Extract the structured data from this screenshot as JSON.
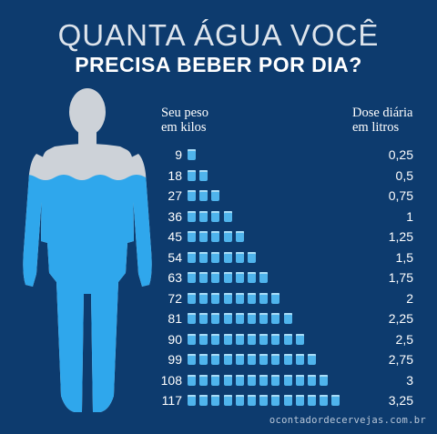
{
  "title": {
    "line1": "QUANTA ÁGUA VOCÊ",
    "line2": "PRECISA BEBER POR DIA?"
  },
  "table": {
    "weight_header": [
      "Seu peso",
      "em kilos"
    ],
    "dose_header": [
      "Dose diária",
      "em litros"
    ],
    "rows": [
      {
        "weight": "9",
        "glasses": 1,
        "liters": "0,25"
      },
      {
        "weight": "18",
        "glasses": 2,
        "liters": "0,5"
      },
      {
        "weight": "27",
        "glasses": 3,
        "liters": "0,75"
      },
      {
        "weight": "36",
        "glasses": 4,
        "liters": "1"
      },
      {
        "weight": "45",
        "glasses": 5,
        "liters": "1,25"
      },
      {
        "weight": "54",
        "glasses": 6,
        "liters": "1,5"
      },
      {
        "weight": "63",
        "glasses": 7,
        "liters": "1,75"
      },
      {
        "weight": "72",
        "glasses": 8,
        "liters": "2"
      },
      {
        "weight": "81",
        "glasses": 9,
        "liters": "2,25"
      },
      {
        "weight": "90",
        "glasses": 10,
        "liters": "2,5"
      },
      {
        "weight": "99",
        "glasses": 11,
        "liters": "2,75"
      },
      {
        "weight": "108",
        "glasses": 12,
        "liters": "3"
      },
      {
        "weight": "117",
        "glasses": 13,
        "liters": "3,25"
      }
    ]
  },
  "source": "ocontadordecervejas.com.br",
  "colors": {
    "background": "#0d3b6e",
    "water": "#4fb4ec",
    "body_dry": "#cdd2d8"
  }
}
